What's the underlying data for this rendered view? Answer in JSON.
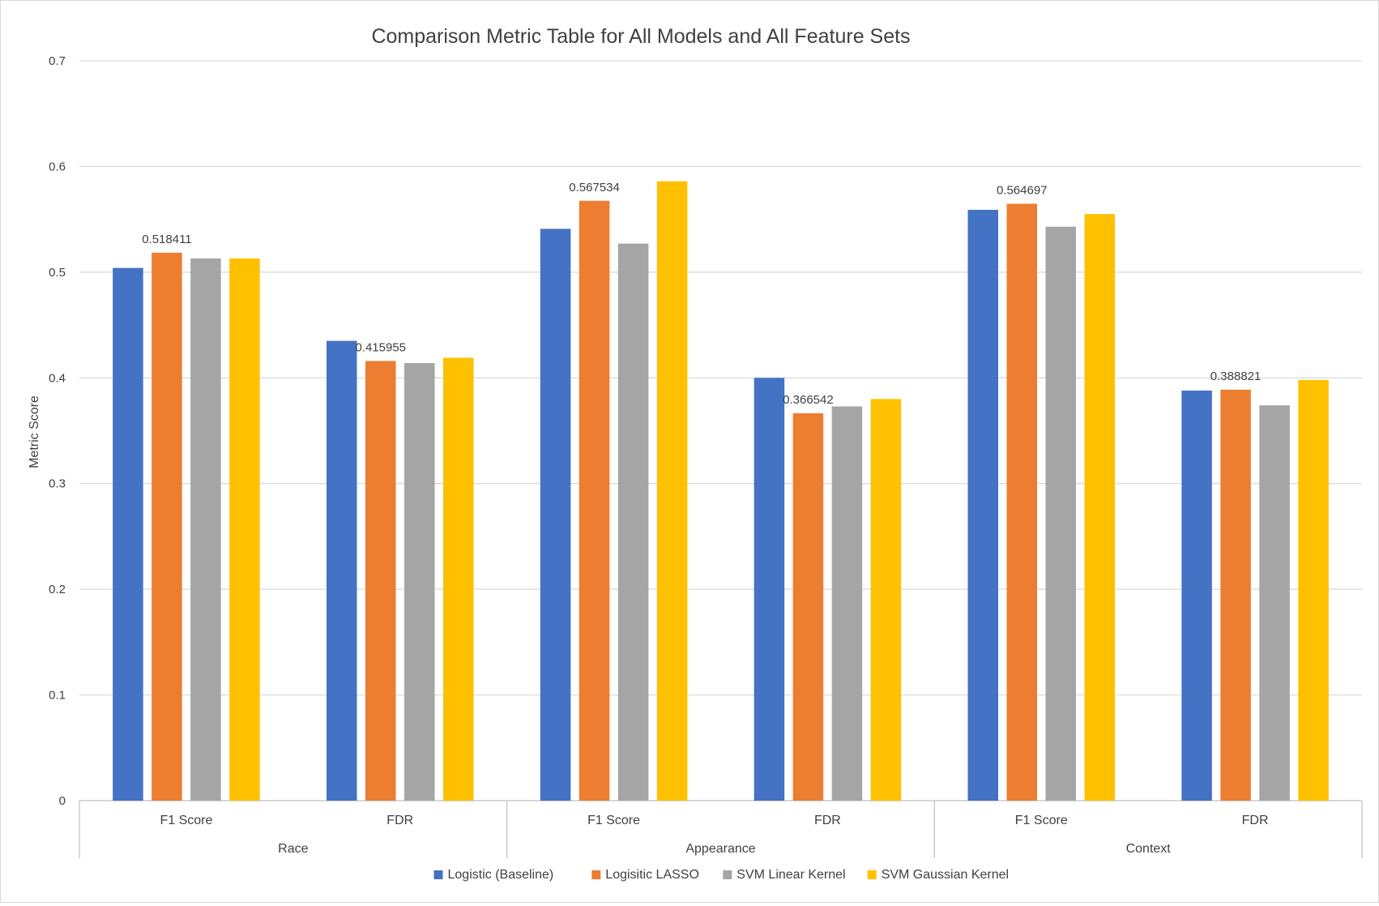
{
  "chart_data": {
    "type": "bar",
    "title": "Comparison Metric Table for All Models and All Feature Sets",
    "ylabel": "Metric Score",
    "xlabel": "",
    "ylim": [
      0,
      0.7
    ],
    "yticks": [
      0,
      0.1,
      0.2,
      0.3,
      0.4,
      0.5,
      0.6,
      0.7
    ],
    "grid": true,
    "legend_position": "bottom",
    "groups": [
      "Race",
      "Appearance",
      "Context"
    ],
    "categories": [
      "F1 Score",
      "FDR",
      "F1 Score",
      "FDR",
      "F1 Score",
      "FDR"
    ],
    "series": [
      {
        "name": "Logistic (Baseline)",
        "color": "#4472C4",
        "values": [
          0.504,
          0.435,
          0.541,
          0.4,
          0.559,
          0.388
        ]
      },
      {
        "name": "Logisitic LASSO",
        "color": "#ED7D31",
        "values": [
          0.518411,
          0.415955,
          0.567534,
          0.366542,
          0.564697,
          0.388821
        ]
      },
      {
        "name": "SVM Linear Kernel",
        "color": "#A5A5A5",
        "values": [
          0.513,
          0.414,
          0.527,
          0.373,
          0.543,
          0.374
        ]
      },
      {
        "name": "SVM Gaussian Kernel",
        "color": "#FFC000",
        "values": [
          0.513,
          0.419,
          0.586,
          0.38,
          0.555,
          0.398
        ]
      }
    ],
    "data_labels": [
      {
        "series": 1,
        "category": 0,
        "text": "0.518411"
      },
      {
        "series": 1,
        "category": 1,
        "text": "0.415955"
      },
      {
        "series": 1,
        "category": 2,
        "text": "0.567534"
      },
      {
        "series": 1,
        "category": 3,
        "text": "0.366542"
      },
      {
        "series": 1,
        "category": 4,
        "text": "0.564697"
      },
      {
        "series": 1,
        "category": 5,
        "text": "0.388821"
      }
    ]
  }
}
